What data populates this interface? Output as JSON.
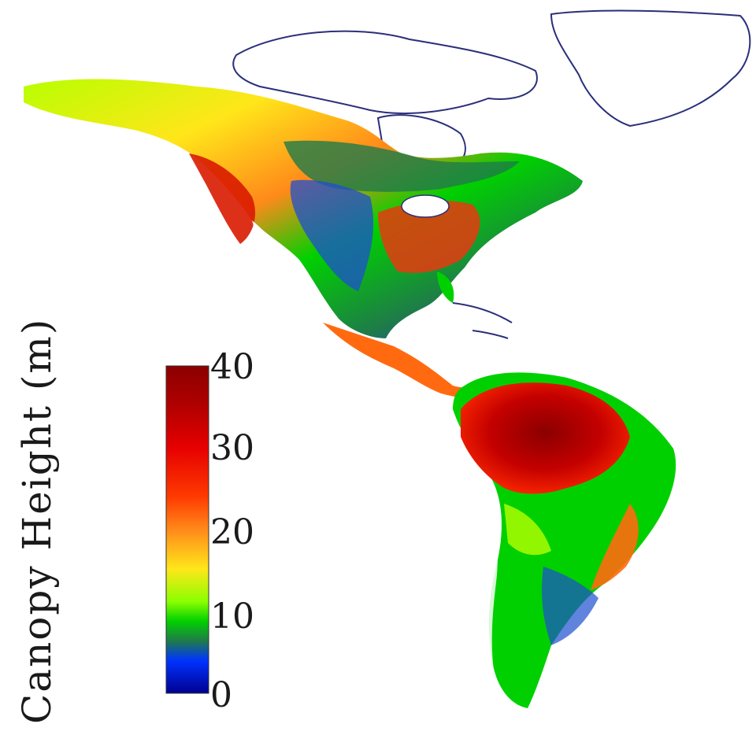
{
  "map": {
    "region": "North and South America",
    "land_outline_color": "#2a2f7a",
    "background_color": "#ffffff"
  },
  "legend": {
    "title": "Canopy Height (m)",
    "ticks": [
      "40",
      "30",
      "20",
      "10",
      "0"
    ],
    "colors": [
      "#8b0000",
      "#d90000",
      "#ff2a00",
      "#ff8a1a",
      "#ffe61a",
      "#b7ff00",
      "#00d000",
      "#1f7a4a",
      "#0033ff",
      "#00008f"
    ]
  }
}
